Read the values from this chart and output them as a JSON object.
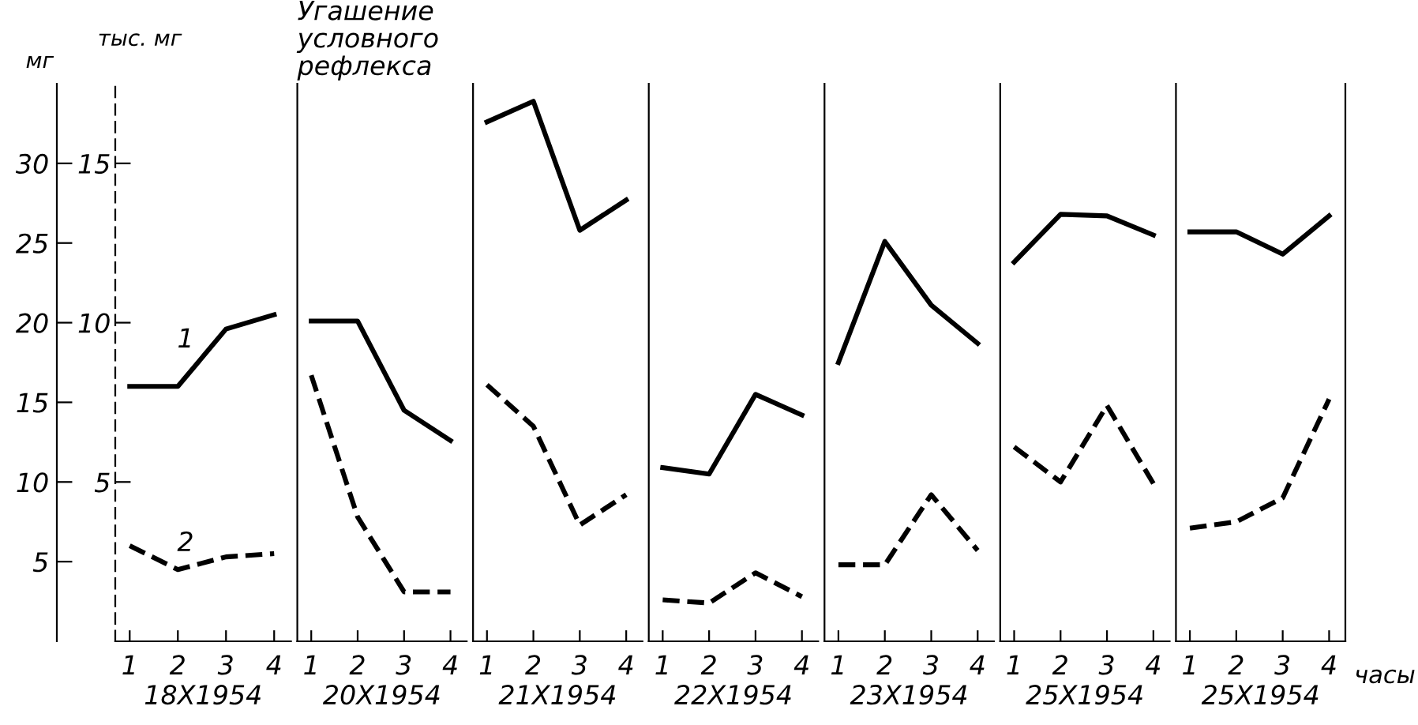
{
  "chart_data": [
    {
      "type": "line",
      "xlabel": "18X1954",
      "ylabel": "мг",
      "y2label": "тыс. мг",
      "categories": [
        "1",
        "2",
        "3",
        "4"
      ],
      "ylim": [
        0,
        35
      ],
      "yticks": [
        5,
        10,
        15,
        20,
        25,
        30
      ],
      "y2lim": [
        0,
        17.5
      ],
      "y2ticks": [
        5,
        10,
        15
      ],
      "annotations": [
        "1",
        "2"
      ],
      "series": [
        {
          "line_style": "solid",
          "color": "#000000",
          "values": [
            16.0,
            16.0,
            19.6,
            20.5
          ]
        },
        {
          "line_style": "dashed",
          "color": "#000000",
          "values": [
            6.0,
            4.5,
            5.3,
            5.5
          ]
        }
      ]
    },
    {
      "type": "line",
      "title": "Угашение условного рефлекса",
      "xlabel": "20X1954",
      "categories": [
        "1",
        "2",
        "3",
        "4"
      ],
      "ylim": [
        0,
        35
      ],
      "yticks": [
        5,
        10,
        15,
        20,
        25,
        30
      ],
      "tick_labels": "x",
      "series": [
        {
          "line_style": "solid",
          "color": "#000000",
          "values": [
            20.1,
            20.1,
            14.5,
            12.6
          ]
        },
        {
          "line_style": "dashed",
          "color": "#000000",
          "values": [
            16.7,
            7.8,
            3.1,
            3.1
          ]
        }
      ]
    },
    {
      "type": "line",
      "xlabel": "21X1954",
      "categories": [
        "1",
        "2",
        "3",
        "4"
      ],
      "ylim": [
        0,
        35
      ],
      "yticks": [
        5,
        10,
        15,
        20,
        25,
        30
      ],
      "tick_labels": "x",
      "series": [
        {
          "line_style": "solid",
          "color": "#000000",
          "values": [
            32.6,
            33.9,
            25.8,
            27.7
          ]
        },
        {
          "line_style": "dashed",
          "color": "#000000",
          "values": [
            16.1,
            13.5,
            7.3,
            9.2
          ]
        }
      ]
    },
    {
      "type": "line",
      "xlabel": "22X1954",
      "categories": [
        "1",
        "2",
        "3",
        "4"
      ],
      "ylim": [
        0,
        35
      ],
      "yticks": [
        5,
        10,
        15,
        20,
        25,
        30
      ],
      "tick_labels": "x",
      "series": [
        {
          "line_style": "solid",
          "color": "#000000",
          "values": [
            10.9,
            10.5,
            15.5,
            14.2
          ]
        },
        {
          "line_style": "dashed",
          "color": "#000000",
          "values": [
            2.6,
            2.4,
            4.3,
            2.8
          ]
        }
      ]
    },
    {
      "type": "line",
      "xlabel": "23X1954",
      "categories": [
        "1",
        "2",
        "3",
        "4"
      ],
      "ylim": [
        0,
        35
      ],
      "yticks": [
        5,
        10,
        15,
        20,
        25,
        30
      ],
      "tick_labels": "x",
      "series": [
        {
          "line_style": "solid",
          "color": "#000000",
          "values": [
            17.5,
            25.1,
            21.1,
            18.7
          ]
        },
        {
          "line_style": "dashed",
          "color": "#000000",
          "values": [
            4.8,
            4.8,
            9.2,
            5.7
          ]
        }
      ]
    },
    {
      "type": "line",
      "xlabel": "25X1954",
      "categories": [
        "1",
        "2",
        "3",
        "4"
      ],
      "ylim": [
        0,
        35
      ],
      "yticks": [
        5,
        10,
        15,
        20,
        25,
        30
      ],
      "tick_labels": "x",
      "series": [
        {
          "line_style": "solid",
          "color": "#000000",
          "values": [
            23.8,
            26.8,
            26.7,
            25.5
          ]
        },
        {
          "line_style": "dashed",
          "color": "#000000",
          "values": [
            12.2,
            10.0,
            14.8,
            9.9
          ]
        }
      ]
    },
    {
      "type": "line",
      "xlabel": "25X1954",
      "categories": [
        "1",
        "2",
        "3",
        "4"
      ],
      "ylim": [
        0,
        35
      ],
      "yticks": [
        5,
        10,
        15,
        20,
        25,
        30
      ],
      "tick_labels": "x",
      "annotations": [
        "часы"
      ],
      "series": [
        {
          "line_style": "solid",
          "color": "#000000",
          "values": [
            25.7,
            25.7,
            24.3,
            26.7
          ]
        },
        {
          "line_style": "dashed",
          "color": "#000000",
          "values": [
            7.1,
            7.5,
            9.0,
            15.2
          ]
        }
      ]
    }
  ]
}
